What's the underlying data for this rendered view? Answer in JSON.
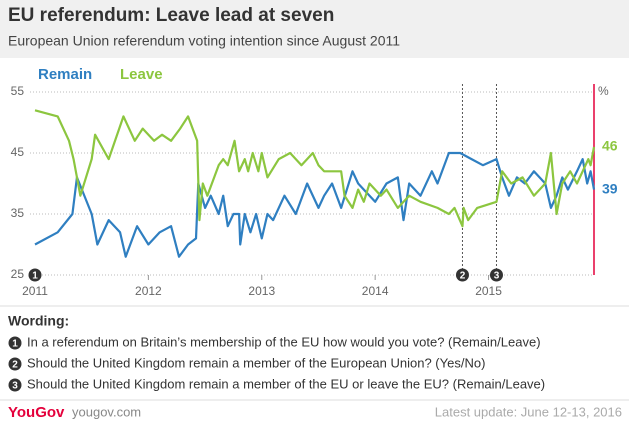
{
  "chart_data": {
    "type": "line",
    "title": "EU referendum: Leave lead at seven",
    "subtitle": "European Union referendum voting intention since August 2011",
    "unit": "%",
    "xlim": [
      2011,
      2015.93
    ],
    "xticks": [
      2011,
      2012,
      2013,
      2014,
      2015
    ],
    "ylim": [
      25,
      55
    ],
    "yticks": [
      25,
      35,
      45,
      55
    ],
    "grid": true,
    "series": [
      {
        "name": "Remain",
        "color": "#2f7fc1",
        "x": [
          2011.0,
          2011.2,
          2011.33,
          2011.37,
          2011.5,
          2011.55,
          2011.65,
          2011.75,
          2011.8,
          2011.9,
          2012.0,
          2012.1,
          2012.2,
          2012.27,
          2012.35,
          2012.42,
          2012.44,
          2012.5,
          2012.55,
          2012.62,
          2012.66,
          2012.7,
          2012.75,
          2012.8,
          2012.81,
          2012.85,
          2012.9,
          2012.95,
          2013.0,
          2013.05,
          2013.1,
          2013.2,
          2013.3,
          2013.4,
          2013.5,
          2013.55,
          2013.62,
          2013.7,
          2013.8,
          2013.85,
          2013.9,
          2014.0,
          2014.1,
          2014.2,
          2014.25,
          2014.3,
          2014.4,
          2014.5,
          2014.55,
          2014.65,
          2014.75,
          2014.85,
          2014.95,
          2015.07,
          2015.12,
          2015.18,
          2015.25,
          2015.32,
          2015.4,
          2015.5,
          2015.55,
          2015.6,
          2015.65,
          2015.7,
          2015.78,
          2015.83,
          2015.87,
          2015.9,
          2015.93
        ],
        "values": [
          30,
          32,
          35,
          41,
          35,
          30,
          34,
          32,
          28,
          33,
          30,
          32,
          33,
          28,
          30,
          31,
          40,
          36,
          38,
          35,
          38,
          33,
          35,
          35,
          30,
          35,
          32,
          35,
          31,
          35,
          34,
          38,
          35,
          40,
          36,
          38,
          40,
          36,
          42,
          40,
          39,
          37,
          40,
          41,
          34,
          40,
          38,
          42,
          40,
          45,
          45,
          44,
          43,
          44,
          41,
          38,
          41,
          40,
          42,
          40,
          36,
          38,
          41,
          39,
          42,
          44,
          40,
          42,
          39
        ]
      },
      {
        "name": "Leave",
        "color": "#8cc63f",
        "x": [
          2011.0,
          2011.2,
          2011.3,
          2011.34,
          2011.4,
          2011.5,
          2011.53,
          2011.65,
          2011.78,
          2011.88,
          2011.95,
          2012.05,
          2012.12,
          2012.2,
          2012.28,
          2012.35,
          2012.43,
          2012.45,
          2012.48,
          2012.52,
          2012.62,
          2012.66,
          2012.7,
          2012.76,
          2012.8,
          2012.85,
          2012.88,
          2012.92,
          2012.97,
          2013.0,
          2013.05,
          2013.15,
          2013.25,
          2013.35,
          2013.45,
          2013.5,
          2013.55,
          2013.7,
          2013.73,
          2013.8,
          2013.85,
          2013.9,
          2013.95,
          2014.05,
          2014.1,
          2014.2,
          2014.3,
          2014.4,
          2014.55,
          2014.65,
          2014.7,
          2014.77,
          2014.78,
          2014.82,
          2014.9,
          2015.07,
          2015.12,
          2015.2,
          2015.3,
          2015.4,
          2015.5,
          2015.55,
          2015.6,
          2015.65,
          2015.72,
          2015.78,
          2015.83,
          2015.88,
          2015.9,
          2015.93
        ],
        "values": [
          52,
          51,
          47,
          44,
          38,
          44,
          48,
          44,
          51,
          47,
          49,
          47,
          48,
          47,
          49,
          51,
          47,
          34,
          40,
          38,
          43,
          44,
          43,
          47,
          42,
          44,
          42,
          45,
          42,
          45,
          41,
          44,
          45,
          43,
          45,
          43,
          42,
          42,
          38,
          36,
          39,
          37,
          40,
          38,
          39,
          36,
          38,
          37,
          36,
          35,
          36,
          33,
          36,
          34,
          36,
          37,
          42,
          40,
          41,
          38,
          40,
          45,
          35,
          40,
          42,
          40,
          42,
          44,
          43,
          46
        ]
      }
    ],
    "markers": [
      {
        "x": 2011.0,
        "label": "1",
        "dashed_line": false
      },
      {
        "x": 2014.77,
        "label": "2",
        "dashed_line": true
      },
      {
        "x": 2015.07,
        "label": "3",
        "dashed_line": true
      }
    ]
  },
  "wording": {
    "heading": "Wording:",
    "notes": [
      {
        "number": "1",
        "text": "In a referendum on Britain’s membership of the EU how would you vote? (Remain/Leave)"
      },
      {
        "number": "2",
        "text": "Should the United Kingdom remain a member of the European Union? (Yes/No)"
      },
      {
        "number": "3",
        "text": "Should the United Kingdom remain a member of the EU or leave the EU? (Remain/Leave)"
      }
    ]
  },
  "footer": {
    "brand": "YouGov",
    "site": "yougov.com",
    "update": "Latest update: June  12-13, 2016"
  }
}
